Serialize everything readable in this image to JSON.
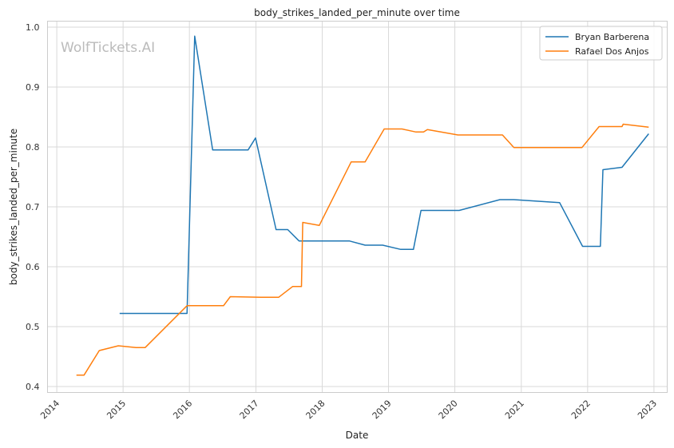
{
  "chart_data": {
    "type": "line",
    "title": "body_strikes_landed_per_minute over time",
    "xlabel": "Date",
    "ylabel": "body_strikes_landed_per_minute",
    "watermark": "WolfTickets.AI",
    "xlim": [
      "2013-11-11",
      "2023-03-15"
    ],
    "ylim": [
      0.39,
      1.01
    ],
    "x_ticks": [
      "2014",
      "2015",
      "2016",
      "2017",
      "2018",
      "2019",
      "2020",
      "2021",
      "2022",
      "2023"
    ],
    "y_ticks": [
      0.4,
      0.5,
      0.6,
      0.7,
      0.8,
      0.9,
      1.0
    ],
    "y_tick_labels": [
      "0.4",
      "0.5",
      "0.6",
      "0.7",
      "0.8",
      "0.9",
      "1.0"
    ],
    "grid": true,
    "legend_position": "top-right",
    "series": [
      {
        "name": "Bryan Barberena",
        "color": "#1f77b4",
        "points": [
          [
            "2014-12-13",
            0.522
          ],
          [
            "2015-12-19",
            0.522
          ],
          [
            "2016-01-30",
            0.985
          ],
          [
            "2016-05-08",
            0.795
          ],
          [
            "2016-11-19",
            0.795
          ],
          [
            "2016-12-30",
            0.815
          ],
          [
            "2017-04-22",
            0.662
          ],
          [
            "2017-06-25",
            0.662
          ],
          [
            "2017-08-27",
            0.643
          ],
          [
            "2018-06-01",
            0.643
          ],
          [
            "2018-08-25",
            0.636
          ],
          [
            "2018-11-30",
            0.636
          ],
          [
            "2019-03-09",
            0.629
          ],
          [
            "2019-05-18",
            0.629
          ],
          [
            "2019-06-29",
            0.694
          ],
          [
            "2020-01-25",
            0.694
          ],
          [
            "2020-09-05",
            0.712
          ],
          [
            "2020-11-21",
            0.712
          ],
          [
            "2021-07-31",
            0.707
          ],
          [
            "2021-12-04",
            0.634
          ],
          [
            "2022-03-12",
            0.634
          ],
          [
            "2022-03-26",
            0.762
          ],
          [
            "2022-07-09",
            0.766
          ],
          [
            "2022-12-03",
            0.822
          ]
        ]
      },
      {
        "name": "Rafael Dos Anjos",
        "color": "#ff7f0e",
        "points": [
          [
            "2014-04-19",
            0.419
          ],
          [
            "2014-05-31",
            0.419
          ],
          [
            "2014-08-23",
            0.46
          ],
          [
            "2014-12-06",
            0.468
          ],
          [
            "2015-03-14",
            0.465
          ],
          [
            "2015-05-02",
            0.465
          ],
          [
            "2015-12-19",
            0.535
          ],
          [
            "2016-07-07",
            0.535
          ],
          [
            "2016-08-13",
            0.55
          ],
          [
            "2017-01-28",
            0.549
          ],
          [
            "2017-05-06",
            0.549
          ],
          [
            "2017-07-22",
            0.567
          ],
          [
            "2017-09-09",
            0.567
          ],
          [
            "2017-09-16",
            0.674
          ],
          [
            "2017-12-16",
            0.669
          ],
          [
            "2018-06-09",
            0.775
          ],
          [
            "2018-08-25",
            0.775
          ],
          [
            "2018-12-08",
            0.83
          ],
          [
            "2019-03-16",
            0.83
          ],
          [
            "2019-06-01",
            0.825
          ],
          [
            "2019-07-13",
            0.825
          ],
          [
            "2019-08-03",
            0.829
          ],
          [
            "2020-01-18",
            0.82
          ],
          [
            "2020-09-19",
            0.82
          ],
          [
            "2020-11-21",
            0.799
          ],
          [
            "2021-12-01",
            0.799
          ],
          [
            "2022-03-05",
            0.834
          ],
          [
            "2022-07-09",
            0.834
          ],
          [
            "2022-07-16",
            0.838
          ],
          [
            "2022-12-03",
            0.833
          ]
        ]
      }
    ]
  }
}
